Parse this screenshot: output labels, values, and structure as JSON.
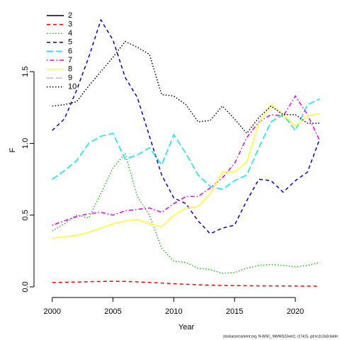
{
  "chart_data": {
    "type": "line",
    "xlabel": "Year",
    "ylabel": "F",
    "footer": "stockassessment.org, N-WSC_NWWG23ver2, r17415, git:ec2c2a0c6dde",
    "x": [
      2000,
      2001,
      2002,
      2003,
      2004,
      2005,
      2006,
      2007,
      2008,
      2009,
      2010,
      2011,
      2012,
      2013,
      2014,
      2015,
      2016,
      2017,
      2018,
      2019,
      2020,
      2021,
      2022
    ],
    "xlim": [
      1998.5,
      2023.5
    ],
    "xticks": [
      2000,
      2005,
      2010,
      2015,
      2020
    ],
    "ylim": [
      -0.074,
      1.93
    ],
    "yticks": [
      {
        "value": 0,
        "label": "0.0"
      },
      {
        "value": 0.5,
        "label": "0.5"
      },
      {
        "value": 1,
        "label": "1.0"
      },
      {
        "value": 1.5,
        "label": "1.5"
      }
    ],
    "legend": "top-left",
    "series": [
      {
        "name": "2",
        "color": "#000000",
        "style": "solid",
        "values": [
          null,
          null,
          null,
          null,
          null,
          null,
          null,
          null,
          null,
          null,
          null,
          null,
          null,
          null,
          null,
          null,
          null,
          null,
          null,
          null,
          null,
          null,
          null
        ]
      },
      {
        "name": "3",
        "color": "#ff0000",
        "style": "dashed",
        "values": [
          0.03,
          0.032,
          0.034,
          0.036,
          0.038,
          0.039,
          0.038,
          0.035,
          0.031,
          0.027,
          0.022,
          0.018,
          0.015,
          0.012,
          0.01,
          0.009,
          0.008,
          0.007,
          0.007,
          0.006,
          0.006,
          0.005,
          0.005
        ]
      },
      {
        "name": "4",
        "color": "#22bb22",
        "style": "dotted",
        "values": [
          0.39,
          0.44,
          0.5,
          0.48,
          0.65,
          0.83,
          0.93,
          0.63,
          0.5,
          0.27,
          0.18,
          0.17,
          0.13,
          0.12,
          0.095,
          0.1,
          0.13,
          0.15,
          0.155,
          0.15,
          0.14,
          0.15,
          0.17
        ]
      },
      {
        "name": "5",
        "color": "#0000dd",
        "style": "dashed",
        "values": [
          1.09,
          1.17,
          1.37,
          1.6,
          1.86,
          1.72,
          1.46,
          1.32,
          1.05,
          0.78,
          0.62,
          0.58,
          0.46,
          0.37,
          0.41,
          0.43,
          0.6,
          0.75,
          0.74,
          0.66,
          0.74,
          0.8,
          1.03
        ]
      },
      {
        "name": "6",
        "color": "#00eeee",
        "style": "longdash",
        "values": [
          0.75,
          0.81,
          0.88,
          1.0,
          1.05,
          1.07,
          0.89,
          0.92,
          0.97,
          0.85,
          1.06,
          0.93,
          0.78,
          0.7,
          0.68,
          0.74,
          0.78,
          0.97,
          1.15,
          1.2,
          1.09,
          1.27,
          1.31
        ]
      },
      {
        "name": "7",
        "color": "#ee00ee",
        "style": "dotdash",
        "values": [
          0.43,
          0.46,
          0.49,
          0.51,
          0.52,
          0.5,
          0.53,
          0.54,
          0.55,
          0.52,
          0.58,
          0.63,
          0.63,
          0.69,
          0.76,
          0.86,
          1.04,
          1.15,
          1.2,
          1.19,
          1.33,
          1.2,
          1.02
        ]
      },
      {
        "name": "8",
        "color": "#ffff22",
        "style": "solid",
        "values": [
          0.34,
          0.35,
          0.36,
          0.38,
          0.41,
          0.44,
          0.46,
          0.47,
          0.44,
          0.42,
          0.5,
          0.55,
          0.56,
          0.65,
          0.8,
          0.8,
          0.87,
          1.14,
          1.27,
          1.2,
          1.12,
          1.19,
          1.21
        ]
      },
      {
        "name": "9",
        "color": "#bebebe",
        "style": "longdash",
        "values": [
          null,
          null,
          null,
          null,
          null,
          null,
          null,
          null,
          null,
          null,
          null,
          null,
          null,
          null,
          null,
          null,
          null,
          null,
          null,
          null,
          null,
          null,
          null
        ]
      },
      {
        "name": "10",
        "color": "#000000",
        "style": "dotted",
        "values": [
          1.26,
          1.27,
          1.29,
          1.4,
          1.5,
          1.6,
          1.71,
          1.67,
          1.62,
          1.34,
          1.33,
          1.27,
          1.15,
          1.16,
          1.26,
          1.17,
          1.07,
          1.18,
          1.26,
          1.2,
          1.2,
          1.14,
          1.14
        ]
      }
    ]
  }
}
